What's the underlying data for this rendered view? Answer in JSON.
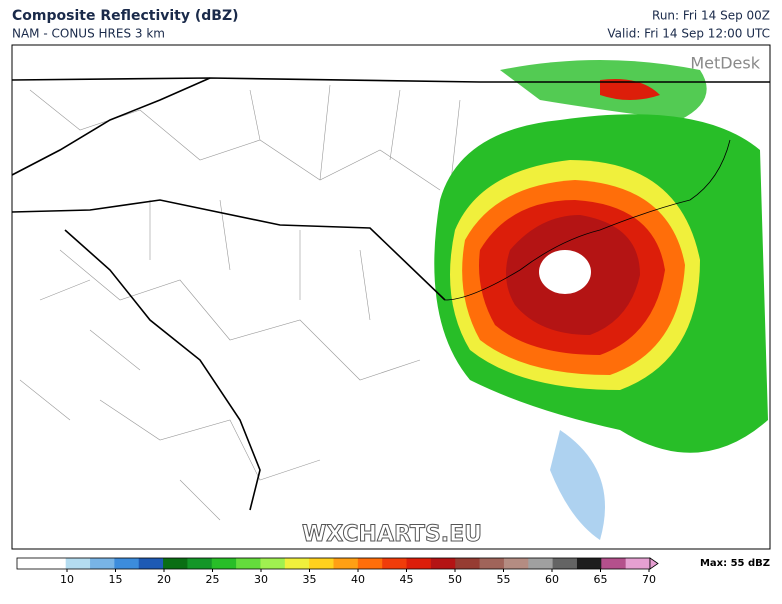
{
  "header": {
    "title": "Composite Reflectivity (dBZ)",
    "subtitle": "NAM - CONUS HRES 3 km",
    "run": "Run: Fri 14 Sep 00Z",
    "valid": "Valid: Fri 14 Sep 12:00 UTC"
  },
  "map": {
    "brand": "MetDesk",
    "watermark": "WXCHARTS.EU"
  },
  "colorbar": {
    "ticks": [
      10,
      15,
      20,
      25,
      30,
      35,
      40,
      45,
      50,
      55,
      60,
      65,
      70
    ],
    "colors": [
      "#ffffff",
      "#ffffff",
      "#b4dcf0",
      "#78b4e6",
      "#3c8cdc",
      "#1e5ab4",
      "#0a6e14",
      "#149628",
      "#28be28",
      "#64dc3c",
      "#a0f050",
      "#f0f03c",
      "#ffd21e",
      "#ffa014",
      "#ff6e0a",
      "#f03c0a",
      "#dc1e0a",
      "#b41414",
      "#963c32",
      "#a0645a",
      "#b48c82",
      "#a0a0a0",
      "#646464",
      "#1e1e1e",
      "#b4508c",
      "#e6a0d2"
    ],
    "max_label": "Max: 55 dBZ"
  }
}
